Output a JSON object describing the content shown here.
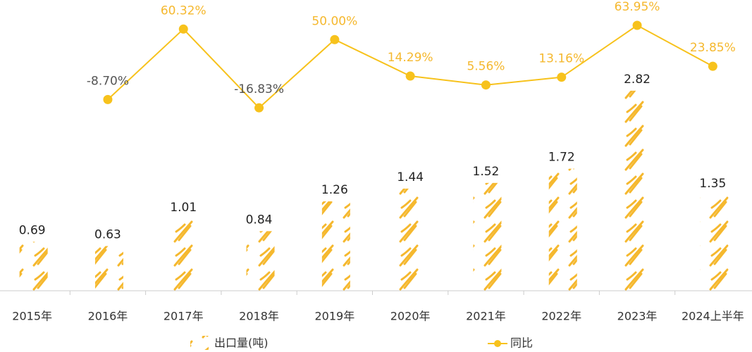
{
  "chart_data": {
    "type": "pictorial-bar-line",
    "categories": [
      "2015年",
      "2016年",
      "2017年",
      "2018年",
      "2019年",
      "2020年",
      "2021年",
      "2022年",
      "2023年",
      "2024上半年"
    ],
    "series": [
      {
        "name": "出口量(吨)",
        "type": "bar",
        "color": "#f5b82e",
        "values": [
          0.69,
          0.63,
          1.01,
          0.84,
          1.26,
          1.44,
          1.52,
          1.72,
          2.82,
          1.35
        ]
      },
      {
        "name": "同比",
        "type": "line",
        "axis": "y2",
        "color": "#f7c21c",
        "values": [
          null,
          -8.7,
          60.32,
          -16.83,
          50.0,
          14.29,
          5.56,
          13.16,
          63.95,
          23.85
        ],
        "value_labels": [
          null,
          "-8.70%",
          "60.32%",
          "-16.83%",
          "50.00%",
          "14.29%",
          "5.56%",
          "13.16%",
          "63.95%",
          "23.85%"
        ],
        "label_color": "#f5b82e",
        "negative_label_color": "#555555"
      }
    ],
    "ylim": [
      0,
      3.9
    ],
    "y2lim": [
      -196,
      75
    ],
    "legend": "bottom"
  }
}
